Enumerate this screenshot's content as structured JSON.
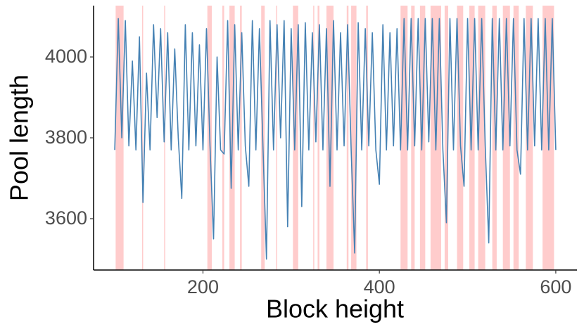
{
  "chart_data": {
    "type": "line",
    "x_label": "Block height",
    "y_label": "Pool length",
    "x": [
      100,
      104,
      108,
      112,
      116,
      120,
      124,
      128,
      132,
      136,
      140,
      144,
      148,
      152,
      156,
      160,
      164,
      168,
      172,
      176,
      180,
      184,
      188,
      192,
      196,
      200,
      204,
      208,
      212,
      216,
      220,
      224,
      228,
      232,
      236,
      240,
      244,
      248,
      252,
      256,
      260,
      264,
      268,
      272,
      276,
      280,
      284,
      288,
      292,
      296,
      300,
      304,
      308,
      312,
      316,
      320,
      324,
      328,
      332,
      336,
      340,
      344,
      348,
      352,
      356,
      360,
      364,
      368,
      372,
      376,
      380,
      384,
      388,
      392,
      396,
      400,
      404,
      408,
      412,
      416,
      420,
      424,
      428,
      432,
      436,
      440,
      444,
      448,
      452,
      456,
      460,
      464,
      468,
      472,
      476,
      480,
      484,
      488,
      492,
      496,
      500,
      504,
      508,
      512,
      516,
      520,
      524,
      528,
      532,
      536,
      540,
      544,
      548,
      552,
      556,
      560,
      564,
      568,
      572,
      576,
      580,
      584,
      588,
      592,
      596,
      600
    ],
    "series": [
      {
        "color": "#4682b4",
        "values": [
          3770,
          4095,
          3800,
          4090,
          3780,
          3990,
          3770,
          4050,
          3640,
          3960,
          3770,
          4080,
          3850,
          4070,
          3790,
          4060,
          3770,
          4020,
          3800,
          3650,
          4080,
          3770,
          4060,
          3780,
          4030,
          3770,
          4070,
          3780,
          3550,
          4000,
          3770,
          3760,
          4090,
          3675,
          4080,
          3770,
          4060,
          3780,
          3680,
          4090,
          3770,
          4070,
          3780,
          3500,
          4090,
          3770,
          4080,
          3800,
          4090,
          3580,
          4070,
          3770,
          4080,
          3630,
          4085,
          3770,
          4060,
          3790,
          4080,
          3770,
          4070,
          3680,
          4090,
          3770,
          4060,
          3780,
          4080,
          3770,
          3515,
          4085,
          3770,
          4070,
          3780,
          4060,
          3770,
          3685,
          4080,
          3770,
          4060,
          3780,
          4070,
          3770,
          4095,
          3770,
          4095,
          3780,
          4095,
          3770,
          4095,
          3790,
          4095,
          3770,
          4095,
          3770,
          3590,
          4095,
          3770,
          4095,
          3780,
          3680,
          4095,
          3770,
          4095,
          3770,
          4095,
          3780,
          3540,
          4095,
          3770,
          4095,
          3770,
          4095,
          3780,
          4095,
          3770,
          3710,
          4095,
          3770,
          4095,
          3780,
          4095,
          3770,
          4095,
          3770,
          4095,
          3770
        ]
      }
    ],
    "highlights": {
      "color": "#ffcccc",
      "ranges": [
        [
          101,
          110
        ],
        [
          131,
          132
        ],
        [
          156,
          157
        ],
        [
          205,
          210
        ],
        [
          222,
          224
        ],
        [
          230,
          236
        ],
        [
          242,
          244
        ],
        [
          266,
          270
        ],
        [
          283,
          284
        ],
        [
          302,
          308
        ],
        [
          325,
          326
        ],
        [
          330,
          332
        ],
        [
          340,
          348
        ],
        [
          363,
          365
        ],
        [
          368,
          374
        ],
        [
          385,
          387
        ],
        [
          424,
          432
        ],
        [
          436,
          440
        ],
        [
          446,
          452
        ],
        [
          458,
          470
        ],
        [
          474,
          478
        ],
        [
          488,
          495
        ],
        [
          502,
          508
        ],
        [
          512,
          520
        ],
        [
          528,
          533
        ],
        [
          540,
          548
        ],
        [
          552,
          558
        ],
        [
          566,
          574
        ],
        [
          585,
          598
        ]
      ]
    },
    "xlim": [
      76,
      624
    ],
    "ylim": [
      3473,
      4127
    ],
    "xticks": [
      200,
      400,
      600
    ],
    "yticks": [
      3600,
      3800,
      4000
    ]
  }
}
